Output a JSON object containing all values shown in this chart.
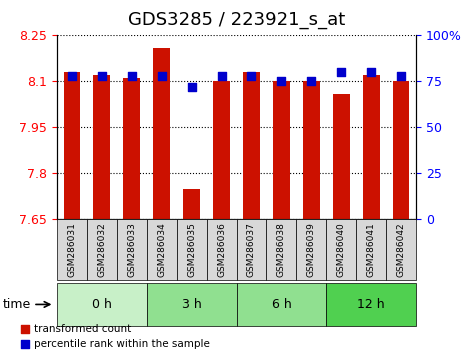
{
  "title": "GDS3285 / 223921_s_at",
  "samples": [
    "GSM286031",
    "GSM286032",
    "GSM286033",
    "GSM286034",
    "GSM286035",
    "GSM286036",
    "GSM286037",
    "GSM286038",
    "GSM286039",
    "GSM286040",
    "GSM286041",
    "GSM286042"
  ],
  "red_values": [
    8.13,
    8.12,
    8.11,
    8.21,
    7.75,
    8.1,
    8.13,
    8.1,
    8.1,
    8.06,
    8.12,
    8.1
  ],
  "blue_values": [
    78,
    78,
    78,
    78,
    72,
    78,
    78,
    75,
    75,
    80,
    80,
    78
  ],
  "baseline": 7.65,
  "ylim_left": [
    7.65,
    8.25
  ],
  "ylim_right": [
    0,
    100
  ],
  "yticks_left": [
    7.65,
    7.8,
    7.95,
    8.1,
    8.25
  ],
  "yticks_right": [
    0,
    25,
    50,
    75,
    100
  ],
  "groups": [
    {
      "label": "0 h",
      "start": 0,
      "end": 3,
      "color": "#c8f0c8"
    },
    {
      "label": "3 h",
      "start": 3,
      "end": 6,
      "color": "#90e090"
    },
    {
      "label": "6 h",
      "start": 6,
      "end": 9,
      "color": "#90e090"
    },
    {
      "label": "12 h",
      "start": 9,
      "end": 12,
      "color": "#50d050"
    }
  ],
  "bar_color": "#cc1100",
  "blue_color": "#0000cc",
  "bar_width": 0.55,
  "blue_square_size": 40,
  "grid_color": "#000000",
  "bg_color": "#ffffff",
  "sample_bg": "#d8d8d8",
  "title_fontsize": 13,
  "tick_fontsize": 9,
  "label_fontsize": 9
}
